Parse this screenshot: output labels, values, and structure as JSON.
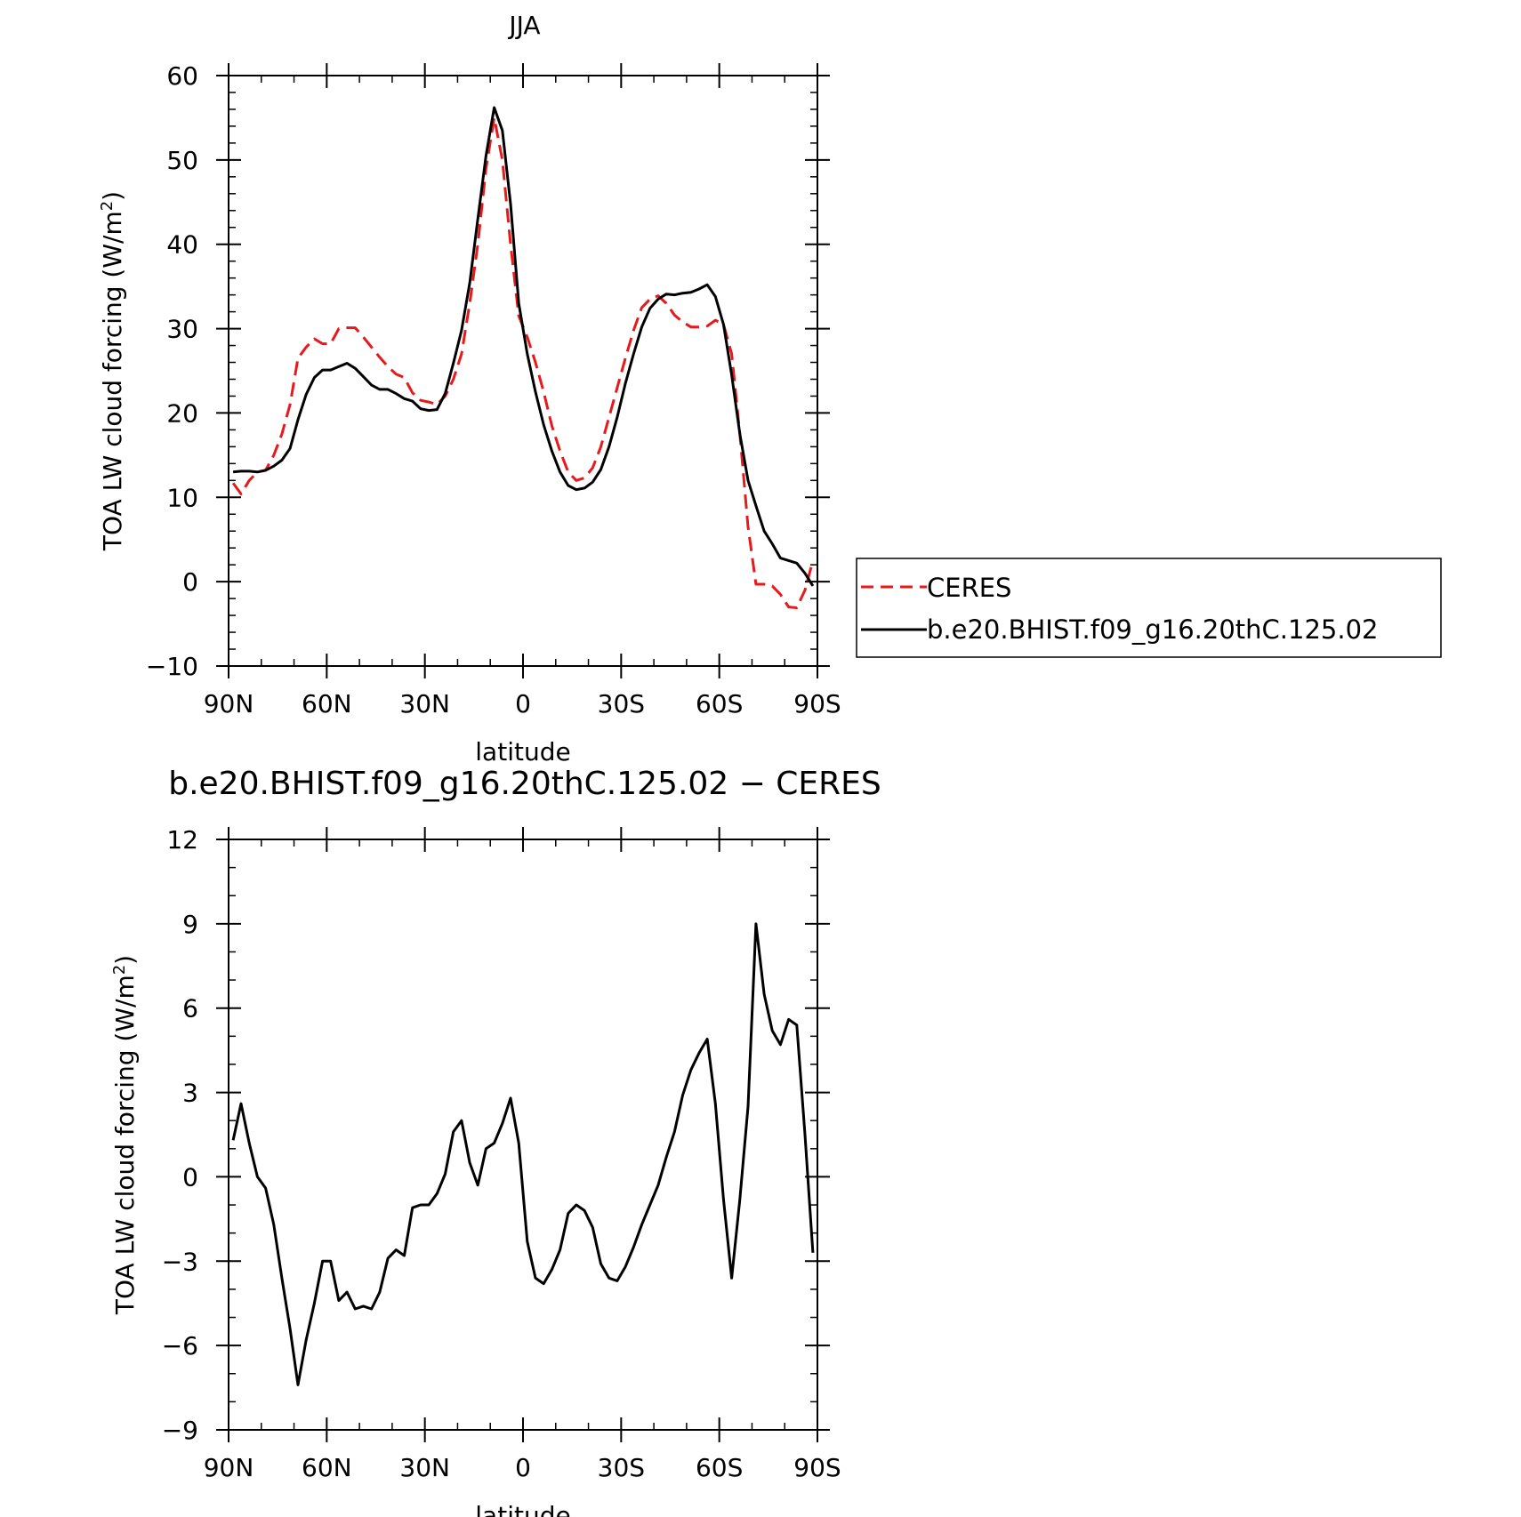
{
  "chart_data": [
    {
      "type": "line",
      "title": "JJA",
      "xlabel": "latitude",
      "ylabel": "TOA LW cloud forcing (W/m²)",
      "xlim": [
        90,
        -90
      ],
      "ylim": [
        -10,
        60
      ],
      "xticks": [
        90,
        60,
        30,
        0,
        -30,
        -60,
        -90
      ],
      "xtick_labels": [
        "90N",
        "60N",
        "30N",
        "0",
        "30S",
        "60S",
        "90S"
      ],
      "yticks": [
        -10,
        0,
        10,
        20,
        30,
        40,
        50,
        60
      ],
      "ytick_labels": [
        "−10",
        "0",
        "10",
        "20",
        "30",
        "40",
        "50",
        "60"
      ],
      "legend": "outside-right",
      "series": [
        {
          "name": "CERES",
          "color": "#e8191c",
          "dash": "dashed",
          "x": [
            88.6,
            86.2,
            83.7,
            81.2,
            78.7,
            76.2,
            73.7,
            71.2,
            68.8,
            66.3,
            63.8,
            61.3,
            58.8,
            56.3,
            53.8,
            51.3,
            48.8,
            46.3,
            43.8,
            41.3,
            38.8,
            36.3,
            33.8,
            31.3,
            28.8,
            26.3,
            23.8,
            21.3,
            18.8,
            16.3,
            13.8,
            11.3,
            8.8,
            6.3,
            3.8,
            1.3,
            -1.3,
            -3.8,
            -6.3,
            -8.8,
            -11.3,
            -13.8,
            -16.3,
            -18.8,
            -21.3,
            -23.8,
            -26.3,
            -28.8,
            -31.3,
            -33.8,
            -36.3,
            -38.8,
            -41.3,
            -43.8,
            -46.3,
            -48.8,
            -51.3,
            -53.8,
            -56.3,
            -58.8,
            -61.3,
            -63.8,
            -66.3,
            -68.8,
            -71.2,
            -73.7,
            -76.2,
            -78.7,
            -81.2,
            -83.7,
            -86.2,
            -88.6
          ],
          "y": [
            11.7,
            10.4,
            12.0,
            13.0,
            13.2,
            15.0,
            17.5,
            21.0,
            26.5,
            27.8,
            28.8,
            28.2,
            28.2,
            30.0,
            30.1,
            30.1,
            29.0,
            27.8,
            26.6,
            25.5,
            24.6,
            24.2,
            22.4,
            21.5,
            21.3,
            21.0,
            22.0,
            24.0,
            27.0,
            33.0,
            40.0,
            49.0,
            55.0,
            50.0,
            40.0,
            31.5,
            29.0,
            26.0,
            22.5,
            18.5,
            15.5,
            13.0,
            12.0,
            12.3,
            13.5,
            16.0,
            19.5,
            23.0,
            26.5,
            29.8,
            32.5,
            33.5,
            33.9,
            33.0,
            31.6,
            30.8,
            30.2,
            30.2,
            30.3,
            31.0,
            30.5,
            27.0,
            17.5,
            6.5,
            -0.3,
            -0.3,
            -0.5,
            -1.5,
            -3.0,
            -3.1,
            -1.0,
            2.5
          ]
        },
        {
          "name": "b.e20.BHIST.f09_g16.20thC.125.02",
          "color": "#000000",
          "dash": "solid",
          "x": [
            88.6,
            86.2,
            83.7,
            81.2,
            78.7,
            76.2,
            73.7,
            71.2,
            68.8,
            66.3,
            63.8,
            61.3,
            58.8,
            56.3,
            53.8,
            51.3,
            48.8,
            46.3,
            43.8,
            41.3,
            38.8,
            36.3,
            33.8,
            31.3,
            28.8,
            26.3,
            23.8,
            21.3,
            18.8,
            16.3,
            13.8,
            11.3,
            8.8,
            6.3,
            3.8,
            1.3,
            -1.3,
            -3.8,
            -6.3,
            -8.8,
            -11.3,
            -13.8,
            -16.3,
            -18.8,
            -21.3,
            -23.8,
            -26.3,
            -28.8,
            -31.3,
            -33.8,
            -36.3,
            -38.8,
            -41.3,
            -43.8,
            -46.3,
            -48.8,
            -51.3,
            -53.8,
            -56.3,
            -58.8,
            -61.3,
            -63.8,
            -66.3,
            -68.8,
            -71.2,
            -73.7,
            -76.2,
            -78.7,
            -81.2,
            -83.7,
            -86.2,
            -88.6
          ],
          "y": [
            13.0,
            13.1,
            13.1,
            13.0,
            13.2,
            13.7,
            14.4,
            15.8,
            19.2,
            22.2,
            24.2,
            25.1,
            25.1,
            25.5,
            25.9,
            25.3,
            24.3,
            23.3,
            22.8,
            22.8,
            22.3,
            21.7,
            21.4,
            20.5,
            20.3,
            20.4,
            22.3,
            25.9,
            29.8,
            35.4,
            43.0,
            50.5,
            56.2,
            53.5,
            44.8,
            33.0,
            27.0,
            22.5,
            18.6,
            15.5,
            13.0,
            11.4,
            10.9,
            11.1,
            11.8,
            13.3,
            16.0,
            19.5,
            23.5,
            27.0,
            30.2,
            32.4,
            33.5,
            34.1,
            34.0,
            34.2,
            34.3,
            34.7,
            35.2,
            33.8,
            30.5,
            24.5,
            17.5,
            12.0,
            9.0,
            6.0,
            4.5,
            2.8,
            2.5,
            2.2,
            1.0,
            -0.5
          ]
        }
      ]
    },
    {
      "type": "line",
      "title": "b.e20.BHIST.f09_g16.20thC.125.02 − CERES",
      "xlabel": "latitude",
      "ylabel": "TOA LW cloud forcing (W/m²)",
      "xlim": [
        90,
        -90
      ],
      "ylim": [
        -9,
        12
      ],
      "xticks": [
        90,
        60,
        30,
        0,
        -30,
        -60,
        -90
      ],
      "xtick_labels": [
        "90N",
        "60N",
        "30N",
        "0",
        "30S",
        "60S",
        "90S"
      ],
      "yticks": [
        -9,
        -6,
        -3,
        0,
        3,
        6,
        9,
        12
      ],
      "ytick_labels": [
        "−9",
        "−6",
        "−3",
        "0",
        "3",
        "6",
        "9",
        "12"
      ],
      "series": [
        {
          "color": "#000000",
          "dash": "solid",
          "x": [
            88.6,
            86.2,
            83.7,
            81.2,
            78.7,
            76.2,
            73.7,
            71.2,
            68.8,
            66.3,
            63.8,
            61.3,
            58.8,
            56.3,
            53.8,
            51.3,
            48.8,
            46.3,
            43.8,
            41.3,
            38.8,
            36.3,
            33.8,
            31.3,
            28.8,
            26.3,
            23.8,
            21.3,
            18.8,
            16.3,
            13.8,
            11.3,
            8.8,
            6.3,
            3.8,
            1.3,
            -1.3,
            -3.8,
            -6.3,
            -8.8,
            -11.3,
            -13.8,
            -16.3,
            -18.8,
            -21.3,
            -23.8,
            -26.3,
            -28.8,
            -31.3,
            -33.8,
            -36.3,
            -38.8,
            -41.3,
            -43.8,
            -46.3,
            -48.8,
            -51.3,
            -53.8,
            -56.3,
            -58.8,
            -61.3,
            -63.8,
            -66.3,
            -68.8,
            -71.2,
            -73.7,
            -76.2,
            -78.7,
            -81.2,
            -83.7,
            -86.2,
            -88.6
          ],
          "y": [
            1.3,
            2.6,
            1.2,
            0.0,
            -0.4,
            -1.7,
            -3.6,
            -5.4,
            -7.4,
            -5.8,
            -4.5,
            -3.0,
            -3.0,
            -4.4,
            -4.1,
            -4.7,
            -4.6,
            -4.7,
            -4.1,
            -2.9,
            -2.6,
            -2.8,
            -1.1,
            -1.0,
            -1.0,
            -0.6,
            0.1,
            1.6,
            2.0,
            0.5,
            -0.3,
            1.0,
            1.2,
            1.9,
            2.8,
            1.2,
            -2.3,
            -3.6,
            -3.8,
            -3.3,
            -2.6,
            -1.3,
            -1.0,
            -1.2,
            -1.8,
            -3.1,
            -3.6,
            -3.7,
            -3.2,
            -2.5,
            -1.7,
            -1.0,
            -0.3,
            0.7,
            1.6,
            2.9,
            3.8,
            4.4,
            4.9,
            2.6,
            -0.8,
            -3.6,
            -0.8,
            2.5,
            9.0,
            6.5,
            5.2,
            4.7,
            5.6,
            5.4,
            1.5,
            -2.7
          ]
        }
      ]
    }
  ]
}
